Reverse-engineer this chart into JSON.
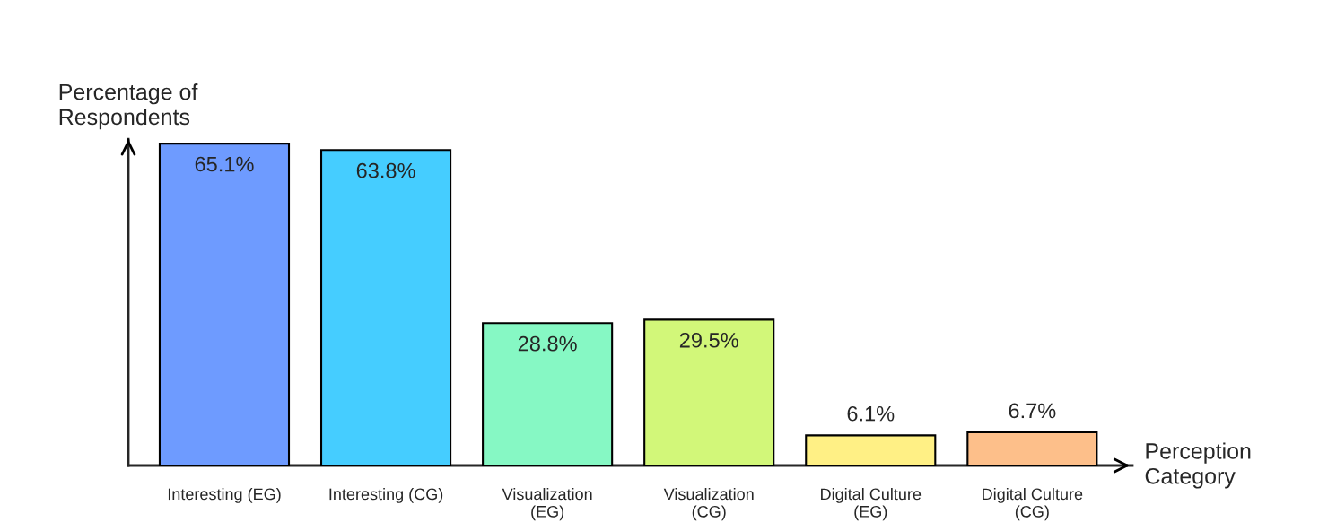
{
  "chart_data": {
    "type": "bar",
    "xlabel": "Perception\nCategory",
    "ylabel": "Percentage of\nRespondents",
    "categories": [
      "Interesting (EG)",
      "Interesting (CG)",
      "Visualization\n(EG)",
      "Visualization\n(CG)",
      "Digital Culture\n(EG)",
      "Digital Culture\n(CG)"
    ],
    "values": [
      65.1,
      63.8,
      28.8,
      29.5,
      6.1,
      6.7
    ],
    "colors": [
      "#6e9bff",
      "#45cdff",
      "#86f8c4",
      "#d2f779",
      "#fff085",
      "#fdbf8a"
    ],
    "value_labels": [
      "65.1%",
      "63.8%",
      "28.8%",
      "29.5%",
      "6.1%",
      "6.7%"
    ],
    "grid": false,
    "legend": false
  }
}
